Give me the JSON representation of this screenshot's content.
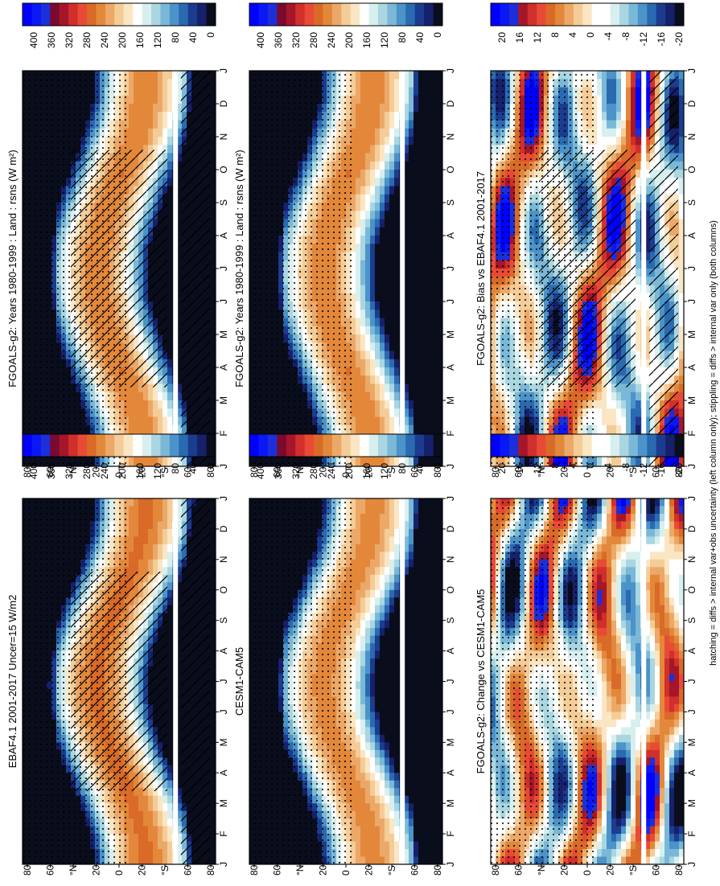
{
  "footnote": "hatching = diffs > internal var+obs uncertainty (left column only); stippling = diffs > internal var only (both columns)",
  "chart_data": [
    {
      "type": "heatmap",
      "id": "p1",
      "title": "FGOALS-g2: Years 1980-1999 : Land : rsns (W m²)",
      "field": "abs",
      "hatch": true,
      "stipple": true,
      "xticks": [
        "J",
        "F",
        "M",
        "A",
        "M",
        "J",
        "J",
        "A",
        "S",
        "O",
        "N",
        "D",
        "J"
      ],
      "yticks": [
        "80",
        "60",
        "°N",
        "20",
        "0",
        "20",
        "°S",
        "60",
        "80"
      ],
      "colorbar": {
        "labels": [
          "0",
          "40",
          "80",
          "120",
          "160",
          "200",
          "240",
          "280",
          "320",
          "360",
          "400"
        ],
        "range": [
          0,
          400
        ],
        "colors": [
          "#0a0d1c",
          "#17206b",
          "#1b3c8f",
          "#2a6ab0",
          "#4b93c9",
          "#7ab8d8",
          "#a9d6e0",
          "#d8efef",
          "#ffffff",
          "#fbe6c4",
          "#f4cc97",
          "#eca868",
          "#e3883a",
          "#d96a27",
          "#e94a36",
          "#d02f2b",
          "#a5162a",
          "#7a0a2f",
          "#1d2fd9",
          "#0a18f5",
          "#0000ff"
        ]
      }
    },
    {
      "type": "heatmap",
      "id": "p2",
      "title": "FGOALS-g2: Years 1980-1999 : Land : rsns (W m²)",
      "field": "abs",
      "hatch": false,
      "stipple": true,
      "xticks": [
        "J",
        "F",
        "M",
        "A",
        "M",
        "J",
        "J",
        "A",
        "S",
        "O",
        "N",
        "D",
        "J"
      ],
      "yticks": [
        "80",
        "60",
        "°N",
        "20",
        "0",
        "20",
        "°S",
        "60",
        "80"
      ],
      "colorbar": {
        "labels": [
          "0",
          "40",
          "80",
          "120",
          "160",
          "200",
          "240",
          "280",
          "320",
          "360",
          "400"
        ],
        "range": [
          0,
          400
        ]
      }
    },
    {
      "type": "heatmap",
      "id": "p3",
      "title": "EBAF4.1 2001-2017 Uncer=15 W/m2",
      "field": "abs",
      "hatch": true,
      "stipple": true,
      "xticks": [
        "J",
        "F",
        "M",
        "A",
        "M",
        "J",
        "J",
        "A",
        "S",
        "O",
        "N",
        "D",
        "J"
      ],
      "yticks": [
        "80",
        "60",
        "°N",
        "20",
        "0",
        "20",
        "°S",
        "60",
        "80"
      ],
      "colorbar": {
        "labels": [
          "0",
          "40",
          "80",
          "120",
          "160",
          "200",
          "240",
          "280",
          "320",
          "360",
          "400"
        ],
        "range": [
          0,
          400
        ]
      }
    },
    {
      "type": "heatmap",
      "id": "p4",
      "title": "CESM1-CAM5",
      "field": "abs",
      "hatch": false,
      "stipple": true,
      "xticks": [
        "J",
        "F",
        "M",
        "A",
        "M",
        "J",
        "J",
        "A",
        "S",
        "O",
        "N",
        "D",
        "J"
      ],
      "yticks": [
        "80",
        "60",
        "°N",
        "20",
        "0",
        "20",
        "°S",
        "60",
        "80"
      ],
      "colorbar": {
        "labels": [
          "0",
          "40",
          "80",
          "120",
          "160",
          "200",
          "240",
          "280",
          "320",
          "360",
          "400"
        ],
        "range": [
          0,
          400
        ]
      }
    },
    {
      "type": "heatmap",
      "id": "p5",
      "title": "FGOALS-g2: Bias vs EBAF4.1 2001-2017",
      "field": "diff",
      "hatch": true,
      "stipple": true,
      "xticks": [
        "J",
        "F",
        "M",
        "A",
        "M",
        "J",
        "J",
        "A",
        "S",
        "O",
        "N",
        "D",
        "J"
      ],
      "yticks": [
        "80",
        "60",
        "°N",
        "20",
        "0",
        "20",
        "°S",
        "60",
        "80"
      ],
      "colorbar": {
        "labels": [
          "-20",
          "-16",
          "-12",
          "-8",
          "-4",
          "0",
          "4",
          "8",
          "12",
          "16",
          "20"
        ],
        "range": [
          -20,
          20
        ],
        "colors": [
          "#0a0d1c",
          "#17206b",
          "#1b3c8f",
          "#2a6ab0",
          "#4b93c9",
          "#7ab8d8",
          "#a9d6e0",
          "#d8efef",
          "#ffffff",
          "#ffffff",
          "#fbe6c4",
          "#f4cc97",
          "#eca868",
          "#e3883a",
          "#d96a27",
          "#e94a36",
          "#d02f2b",
          "#a5162a",
          "#1d2fd9",
          "#0a18f5",
          "#0000ff"
        ]
      }
    },
    {
      "type": "heatmap",
      "id": "p6",
      "title": "FGOALS-g2: Change vs CESM1-CAM5",
      "field": "diff",
      "hatch": false,
      "stipple": true,
      "xticks": [
        "J",
        "F",
        "M",
        "A",
        "M",
        "J",
        "J",
        "A",
        "S",
        "O",
        "N",
        "D",
        "J"
      ],
      "yticks": [
        "80",
        "60",
        "°N",
        "20",
        "0",
        "20",
        "°S",
        "60",
        "80"
      ],
      "colorbar": {
        "labels": [
          "-20",
          "-16",
          "-12",
          "-8",
          "-4",
          "0",
          "4",
          "8",
          "12",
          "16",
          "20"
        ],
        "range": [
          -20,
          20
        ]
      }
    }
  ]
}
